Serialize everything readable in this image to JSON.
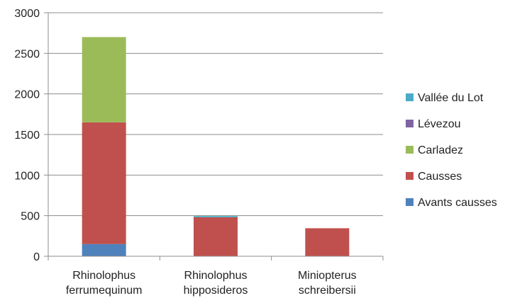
{
  "chart_data": {
    "type": "bar",
    "stacked": true,
    "categories": [
      [
        "Rhinolophus",
        "ferrumequinum"
      ],
      [
        "Rhinolophus",
        "hipposideros"
      ],
      [
        "Miniopterus",
        "schreibersii"
      ]
    ],
    "series": [
      {
        "name": "Avants causses",
        "color": "#4F81BD",
        "values": [
          150,
          0,
          0
        ]
      },
      {
        "name": "Causses",
        "color": "#C0504D",
        "values": [
          1500,
          480,
          345
        ]
      },
      {
        "name": "Carladez",
        "color": "#9BBB59",
        "values": [
          1050,
          0,
          0
        ]
      },
      {
        "name": "Lévezou",
        "color": "#8064A2",
        "values": [
          0,
          0,
          0
        ]
      },
      {
        "name": "Vallée du Lot",
        "color": "#4BACC6",
        "values": [
          0,
          15,
          0
        ]
      }
    ],
    "ylim": [
      0,
      3000
    ],
    "yticks": [
      0,
      500,
      1000,
      1500,
      2000,
      2500,
      3000
    ],
    "grid": true,
    "legend_position": "right",
    "legend_order": [
      "Vallée du Lot",
      "Lévezou",
      "Carladez",
      "Causses",
      "Avants causses"
    ]
  }
}
